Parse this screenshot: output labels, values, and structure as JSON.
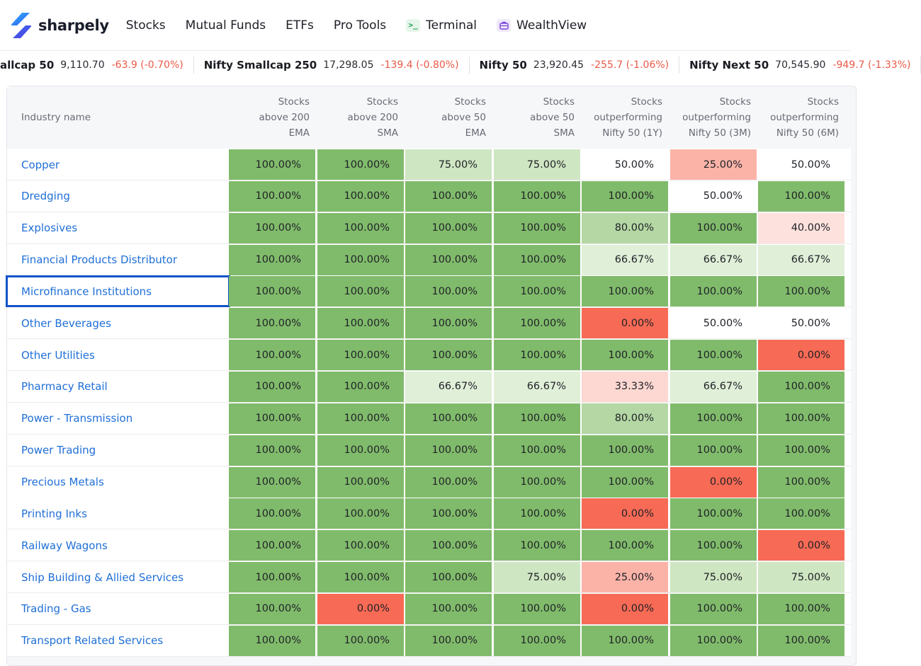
{
  "nav": {
    "brand": "sharpely",
    "items": [
      {
        "label": "Stocks",
        "icon": ""
      },
      {
        "label": "Mutual Funds",
        "icon": ""
      },
      {
        "label": "ETFs",
        "icon": ""
      },
      {
        "label": "Pro Tools",
        "icon": ""
      },
      {
        "label": "Terminal",
        "icon": "terminal-icon"
      },
      {
        "label": "WealthView",
        "icon": "briefcase-icon"
      }
    ]
  },
  "ticker": [
    {
      "name": "allcap 50",
      "value": "9,110.70",
      "change": "-63.9 (-0.70%)"
    },
    {
      "name": "Nifty Smallcap 250",
      "value": "17,298.05",
      "change": "-139.4 (-0.80%)"
    },
    {
      "name": "Nifty 50",
      "value": "23,920.45",
      "change": "-255.7 (-1.06%)"
    },
    {
      "name": "Nifty Next 50",
      "value": "70,545.90",
      "change": "-949.7 (-1.33%)"
    }
  ],
  "colors": {
    "green_full": "#80bb6b",
    "green_mid": "#b4d7a4",
    "green_light": "#cfe6c2",
    "green_pale": "#e0efd8",
    "red_full": "#f76a55",
    "red_light": "#fbb3a8",
    "red_pale": "#fdd7d1",
    "red_faint": "#fde1dd",
    "neutral": "#ffffff",
    "link": "#1f6fd6",
    "negative": "#ea5a48"
  },
  "table": {
    "headers": [
      "Industry name",
      "Stocks above 200 EMA",
      "Stocks above 200 SMA",
      "Stocks above 50 EMA",
      "Stocks above 50 SMA",
      "Stocks outperforming Nifty 50 (1Y)",
      "Stocks outperforming Nifty 50 (3M)",
      "Stocks outperforming Nifty 50 (6M)"
    ],
    "header_lines": [
      [
        "Industry name"
      ],
      [
        "Stocks",
        "above 200",
        "EMA"
      ],
      [
        "Stocks",
        "above 200",
        "SMA"
      ],
      [
        "Stocks",
        "above 50",
        "EMA"
      ],
      [
        "Stocks",
        "above 50",
        "SMA"
      ],
      [
        "Stocks",
        "outperforming",
        "Nifty 50 (1Y)"
      ],
      [
        "Stocks",
        "outperforming",
        "Nifty 50 (3M)"
      ],
      [
        "Stocks",
        "outperforming",
        "Nifty 50 (6M)"
      ]
    ],
    "selected_row": "Microfinance Institutions",
    "rows": [
      {
        "name": "Copper",
        "values": [
          "100.00%",
          "100.00%",
          "75.00%",
          "75.00%",
          "50.00%",
          "25.00%",
          "50.00%"
        ]
      },
      {
        "name": "Dredging",
        "values": [
          "100.00%",
          "100.00%",
          "100.00%",
          "100.00%",
          "100.00%",
          "50.00%",
          "100.00%"
        ]
      },
      {
        "name": "Explosives",
        "values": [
          "100.00%",
          "100.00%",
          "100.00%",
          "100.00%",
          "80.00%",
          "100.00%",
          "40.00%"
        ]
      },
      {
        "name": "Financial Products Distributor",
        "values": [
          "100.00%",
          "100.00%",
          "100.00%",
          "100.00%",
          "66.67%",
          "66.67%",
          "66.67%"
        ]
      },
      {
        "name": "Microfinance Institutions",
        "values": [
          "100.00%",
          "100.00%",
          "100.00%",
          "100.00%",
          "100.00%",
          "100.00%",
          "100.00%"
        ]
      },
      {
        "name": "Other Beverages",
        "values": [
          "100.00%",
          "100.00%",
          "100.00%",
          "100.00%",
          "0.00%",
          "50.00%",
          "50.00%"
        ]
      },
      {
        "name": "Other Utilities",
        "values": [
          "100.00%",
          "100.00%",
          "100.00%",
          "100.00%",
          "100.00%",
          "100.00%",
          "0.00%"
        ]
      },
      {
        "name": "Pharmacy Retail",
        "values": [
          "100.00%",
          "100.00%",
          "66.67%",
          "66.67%",
          "33.33%",
          "66.67%",
          "100.00%"
        ]
      },
      {
        "name": "Power - Transmission",
        "values": [
          "100.00%",
          "100.00%",
          "100.00%",
          "100.00%",
          "80.00%",
          "100.00%",
          "100.00%"
        ]
      },
      {
        "name": "Power Trading",
        "values": [
          "100.00%",
          "100.00%",
          "100.00%",
          "100.00%",
          "100.00%",
          "100.00%",
          "100.00%"
        ]
      },
      {
        "name": "Precious Metals",
        "values": [
          "100.00%",
          "100.00%",
          "100.00%",
          "100.00%",
          "100.00%",
          "0.00%",
          "100.00%"
        ]
      },
      {
        "name": "Printing Inks",
        "values": [
          "100.00%",
          "100.00%",
          "100.00%",
          "100.00%",
          "0.00%",
          "100.00%",
          "100.00%"
        ]
      },
      {
        "name": "Railway Wagons",
        "values": [
          "100.00%",
          "100.00%",
          "100.00%",
          "100.00%",
          "100.00%",
          "100.00%",
          "0.00%"
        ]
      },
      {
        "name": "Ship Building & Allied Services",
        "values": [
          "100.00%",
          "100.00%",
          "100.00%",
          "75.00%",
          "25.00%",
          "75.00%",
          "75.00%"
        ]
      },
      {
        "name": "Trading - Gas",
        "values": [
          "100.00%",
          "0.00%",
          "100.00%",
          "100.00%",
          "0.00%",
          "100.00%",
          "100.00%"
        ]
      },
      {
        "name": "Transport Related Services",
        "values": [
          "100.00%",
          "100.00%",
          "100.00%",
          "100.00%",
          "100.00%",
          "100.00%",
          "100.00%"
        ]
      }
    ]
  }
}
